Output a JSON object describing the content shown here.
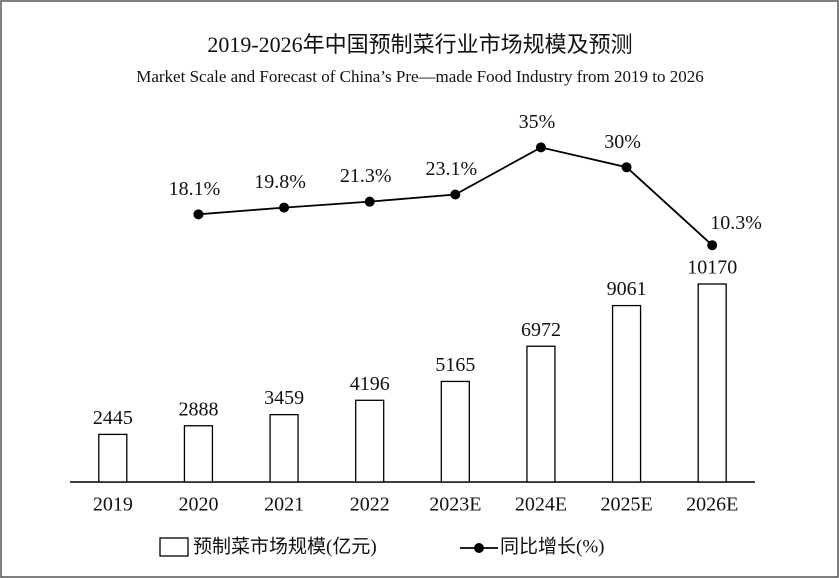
{
  "chart_data": {
    "type": "bar",
    "title": "2019-2026年中国预制菜行业市场规模及预测",
    "subtitle": "Market Scale and Forecast of China’s Pre—made Food Industry from 2019 to 2026",
    "categories": [
      "2019",
      "2020",
      "2021",
      "2022",
      "2023E",
      "2024E",
      "2025E",
      "2026E"
    ],
    "series": [
      {
        "name": "预制菜市场规模(亿元)",
        "type": "bar",
        "color": "#ffffff",
        "values": [
          2445,
          2888,
          3459,
          4196,
          5165,
          6972,
          9061,
          10170
        ]
      },
      {
        "name": "同比增长(%)",
        "type": "line",
        "axis": "y2",
        "color": "#000000",
        "values": [
          null,
          18.1,
          19.8,
          21.3,
          23.1,
          35,
          30,
          10.3
        ],
        "value_labels": [
          null,
          "18.1%",
          "19.8%",
          "21.3%",
          "23.1%",
          "35%",
          "30%",
          "10.3%"
        ]
      }
    ],
    "ylim": [
      0,
      20000
    ],
    "y2lim": [
      0,
      50
    ]
  }
}
